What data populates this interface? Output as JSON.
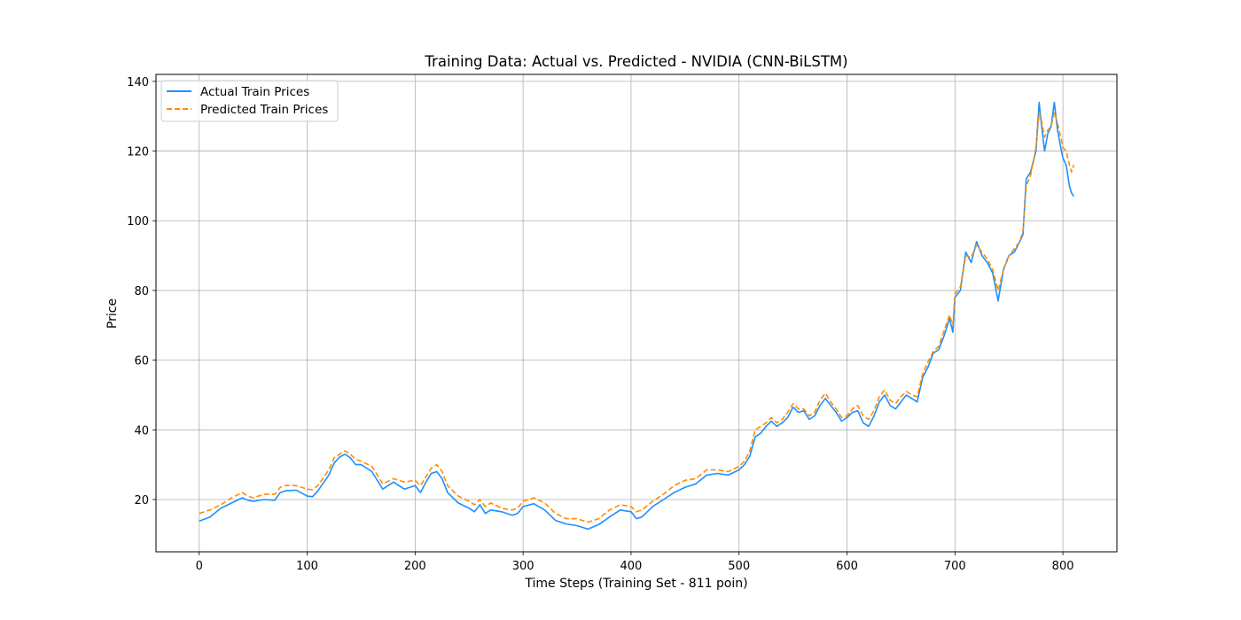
{
  "chart_data": {
    "type": "line",
    "title": "Training Data: Actual vs. Predicted - NVIDIA (CNN-BiLSTM)",
    "xlabel": "Time Steps (Training Set - 811 poin)",
    "ylabel": "Price",
    "xlim": [
      -40,
      850
    ],
    "ylim": [
      5,
      142
    ],
    "xticks": [
      0,
      100,
      200,
      300,
      400,
      500,
      600,
      700,
      800
    ],
    "xtick_labels": [
      "0",
      "100",
      "200",
      "300",
      "400",
      "500",
      "600",
      "700",
      "800"
    ],
    "yticks": [
      20,
      40,
      60,
      80,
      100,
      120,
      140
    ],
    "ytick_labels": [
      "20",
      "40",
      "60",
      "80",
      "100",
      "120",
      "140"
    ],
    "grid": true,
    "legend_position": "top-left",
    "series": [
      {
        "name": "Actual Train Prices",
        "color": "#1e90ff",
        "style": "solid",
        "points": [
          [
            0,
            13.8
          ],
          [
            10,
            15
          ],
          [
            20,
            17.5
          ],
          [
            30,
            19
          ],
          [
            40,
            20.5
          ],
          [
            45,
            19.8
          ],
          [
            50,
            19.5
          ],
          [
            60,
            20
          ],
          [
            70,
            19.8
          ],
          [
            75,
            22
          ],
          [
            80,
            22.5
          ],
          [
            90,
            22.7
          ],
          [
            100,
            21
          ],
          [
            105,
            20.8
          ],
          [
            110,
            22.5
          ],
          [
            120,
            27
          ],
          [
            125,
            30.5
          ],
          [
            130,
            32.2
          ],
          [
            135,
            33
          ],
          [
            140,
            32
          ],
          [
            145,
            30
          ],
          [
            150,
            30
          ],
          [
            160,
            28
          ],
          [
            170,
            23
          ],
          [
            180,
            25
          ],
          [
            190,
            23
          ],
          [
            200,
            24
          ],
          [
            205,
            22
          ],
          [
            210,
            25
          ],
          [
            215,
            27.5
          ],
          [
            220,
            28
          ],
          [
            225,
            26
          ],
          [
            230,
            22
          ],
          [
            240,
            19
          ],
          [
            250,
            17.5
          ],
          [
            255,
            16.5
          ],
          [
            260,
            18.5
          ],
          [
            265,
            16
          ],
          [
            270,
            17
          ],
          [
            280,
            16.5
          ],
          [
            290,
            15.5
          ],
          [
            295,
            16
          ],
          [
            300,
            18
          ],
          [
            310,
            18.8
          ],
          [
            320,
            17
          ],
          [
            330,
            14
          ],
          [
            340,
            13
          ],
          [
            350,
            12.5
          ],
          [
            360,
            11.5
          ],
          [
            370,
            12.8
          ],
          [
            380,
            15
          ],
          [
            390,
            17
          ],
          [
            400,
            16.5
          ],
          [
            405,
            14.5
          ],
          [
            410,
            15
          ],
          [
            420,
            18
          ],
          [
            430,
            20
          ],
          [
            440,
            22
          ],
          [
            450,
            23.5
          ],
          [
            460,
            24.5
          ],
          [
            470,
            27
          ],
          [
            480,
            27.5
          ],
          [
            490,
            27
          ],
          [
            500,
            28.5
          ],
          [
            505,
            30
          ],
          [
            510,
            32.5
          ],
          [
            515,
            38
          ],
          [
            520,
            39
          ],
          [
            525,
            41
          ],
          [
            530,
            42.5
          ],
          [
            535,
            41
          ],
          [
            540,
            42
          ],
          [
            545,
            43.5
          ],
          [
            550,
            46.5
          ],
          [
            555,
            45
          ],
          [
            560,
            45.5
          ],
          [
            565,
            43
          ],
          [
            570,
            44
          ],
          [
            575,
            47
          ],
          [
            580,
            49
          ],
          [
            585,
            47
          ],
          [
            590,
            45
          ],
          [
            595,
            42.5
          ],
          [
            600,
            43.5
          ],
          [
            605,
            45
          ],
          [
            610,
            45.5
          ],
          [
            615,
            42
          ],
          [
            620,
            41
          ],
          [
            625,
            44
          ],
          [
            630,
            48
          ],
          [
            635,
            50
          ],
          [
            640,
            47
          ],
          [
            645,
            46
          ],
          [
            650,
            48
          ],
          [
            655,
            50
          ],
          [
            660,
            49
          ],
          [
            665,
            48
          ],
          [
            670,
            55
          ],
          [
            675,
            58
          ],
          [
            680,
            62
          ],
          [
            685,
            63
          ],
          [
            690,
            67
          ],
          [
            695,
            72
          ],
          [
            698,
            68
          ],
          [
            700,
            78
          ],
          [
            705,
            80
          ],
          [
            710,
            91
          ],
          [
            715,
            88
          ],
          [
            720,
            94
          ],
          [
            725,
            90
          ],
          [
            730,
            88
          ],
          [
            735,
            85
          ],
          [
            740,
            77
          ],
          [
            745,
            86
          ],
          [
            750,
            90
          ],
          [
            755,
            91
          ],
          [
            760,
            94
          ],
          [
            763,
            96
          ],
          [
            766,
            112
          ],
          [
            770,
            114
          ],
          [
            775,
            120
          ],
          [
            778,
            134
          ],
          [
            780,
            128
          ],
          [
            783,
            120
          ],
          [
            786,
            125
          ],
          [
            789,
            127
          ],
          [
            792,
            134
          ],
          [
            795,
            126
          ],
          [
            798,
            121
          ],
          [
            800,
            118
          ],
          [
            803,
            116
          ],
          [
            806,
            110
          ],
          [
            808,
            108
          ],
          [
            810,
            107
          ]
        ]
      },
      {
        "name": "Predicted Train Prices",
        "color": "#ff8c00",
        "style": "dashed",
        "points": [
          [
            0,
            16
          ],
          [
            10,
            17
          ],
          [
            20,
            18.5
          ],
          [
            30,
            20.5
          ],
          [
            40,
            22
          ],
          [
            45,
            21
          ],
          [
            50,
            20.5
          ],
          [
            60,
            21.5
          ],
          [
            70,
            21.5
          ],
          [
            75,
            23.5
          ],
          [
            80,
            24
          ],
          [
            90,
            24
          ],
          [
            100,
            23
          ],
          [
            105,
            22.8
          ],
          [
            110,
            24
          ],
          [
            120,
            28.5
          ],
          [
            125,
            32
          ],
          [
            130,
            33
          ],
          [
            135,
            34
          ],
          [
            140,
            33
          ],
          [
            145,
            31.5
          ],
          [
            150,
            31
          ],
          [
            160,
            29.5
          ],
          [
            170,
            24.5
          ],
          [
            180,
            26
          ],
          [
            190,
            25
          ],
          [
            200,
            25.5
          ],
          [
            205,
            24
          ],
          [
            210,
            26.5
          ],
          [
            215,
            29
          ],
          [
            220,
            30
          ],
          [
            225,
            28
          ],
          [
            230,
            24
          ],
          [
            240,
            21
          ],
          [
            250,
            19.5
          ],
          [
            255,
            18.5
          ],
          [
            260,
            20
          ],
          [
            265,
            18
          ],
          [
            270,
            19
          ],
          [
            280,
            17.5
          ],
          [
            290,
            17
          ],
          [
            295,
            17.5
          ],
          [
            300,
            19.5
          ],
          [
            310,
            20.5
          ],
          [
            320,
            19
          ],
          [
            330,
            16
          ],
          [
            340,
            14.5
          ],
          [
            350,
            14.5
          ],
          [
            360,
            13.5
          ],
          [
            370,
            14.5
          ],
          [
            380,
            17
          ],
          [
            390,
            18.5
          ],
          [
            400,
            18
          ],
          [
            405,
            16.5
          ],
          [
            410,
            17
          ],
          [
            420,
            19.5
          ],
          [
            430,
            21.5
          ],
          [
            440,
            24
          ],
          [
            450,
            25.5
          ],
          [
            460,
            26
          ],
          [
            470,
            28.5
          ],
          [
            480,
            28.5
          ],
          [
            490,
            28
          ],
          [
            500,
            29.5
          ],
          [
            505,
            31
          ],
          [
            510,
            34
          ],
          [
            515,
            40
          ],
          [
            520,
            41
          ],
          [
            525,
            42
          ],
          [
            530,
            43.5
          ],
          [
            535,
            42
          ],
          [
            540,
            43
          ],
          [
            545,
            45
          ],
          [
            550,
            47.5
          ],
          [
            555,
            46
          ],
          [
            560,
            46
          ],
          [
            565,
            44
          ],
          [
            570,
            45
          ],
          [
            575,
            48.5
          ],
          [
            580,
            50.5
          ],
          [
            585,
            48
          ],
          [
            590,
            46
          ],
          [
            595,
            43.5
          ],
          [
            600,
            44
          ],
          [
            605,
            46
          ],
          [
            610,
            47
          ],
          [
            615,
            44
          ],
          [
            620,
            43
          ],
          [
            625,
            45.5
          ],
          [
            630,
            49.5
          ],
          [
            635,
            51.5
          ],
          [
            640,
            48.5
          ],
          [
            645,
            47.5
          ],
          [
            650,
            49.5
          ],
          [
            655,
            51
          ],
          [
            660,
            50
          ],
          [
            665,
            49.5
          ],
          [
            670,
            56
          ],
          [
            675,
            59.5
          ],
          [
            680,
            62.5
          ],
          [
            685,
            64
          ],
          [
            690,
            68.5
          ],
          [
            695,
            73
          ],
          [
            698,
            70
          ],
          [
            700,
            79
          ],
          [
            705,
            81
          ],
          [
            710,
            90
          ],
          [
            715,
            89.5
          ],
          [
            720,
            93
          ],
          [
            725,
            91
          ],
          [
            730,
            89
          ],
          [
            735,
            86
          ],
          [
            740,
            80
          ],
          [
            745,
            86
          ],
          [
            750,
            90
          ],
          [
            755,
            92
          ],
          [
            760,
            94
          ],
          [
            763,
            97
          ],
          [
            766,
            110
          ],
          [
            770,
            113
          ],
          [
            775,
            121
          ],
          [
            778,
            131
          ],
          [
            780,
            129
          ],
          [
            783,
            124
          ],
          [
            786,
            126
          ],
          [
            789,
            127
          ],
          [
            792,
            131
          ],
          [
            795,
            128
          ],
          [
            798,
            124
          ],
          [
            800,
            121
          ],
          [
            803,
            120
          ],
          [
            806,
            116
          ],
          [
            808,
            114
          ],
          [
            810,
            116
          ]
        ]
      }
    ]
  }
}
